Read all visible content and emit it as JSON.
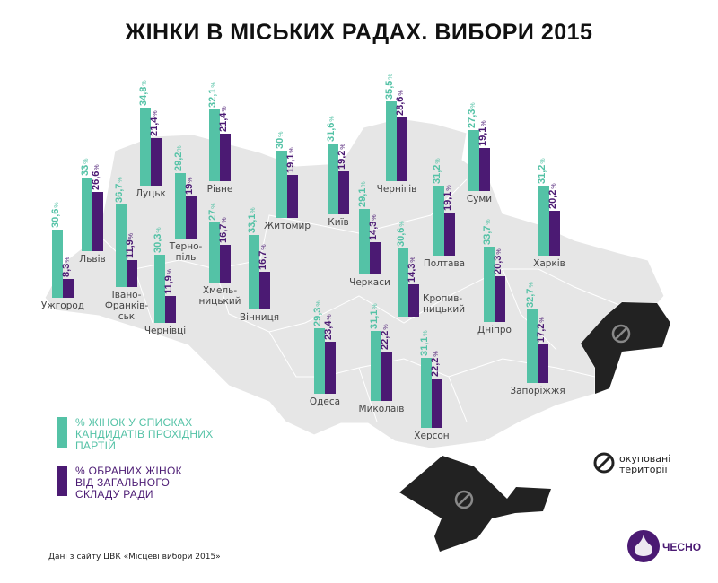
{
  "title": "ЖІНКИ В МІСЬКИХ РАДАХ. ВИБОРИ 2015",
  "colors": {
    "candidates": "#54c2a6",
    "elected": "#4b1a73",
    "map": "#e6e6e6",
    "occupied": "#222222"
  },
  "legend": {
    "candidates": "% ЖІНОК У СПИСКАХ\nКАНДИДАТІВ ПРОХІДНИХ\nПАРТІЙ",
    "elected": "% ОБРАНИХ ЖІНОК\nВІД ЗАГАЛЬНОГО\nСКЛАДУ РАДИ",
    "occupied": "окуповані\nтериторії",
    "occupied_icon": "prohibited-icon"
  },
  "source": "Дані з сайту ЦВК «Місцеві вибори 2015»",
  "logo": "ЧЕСНО",
  "unit": "%",
  "chart_data": {
    "type": "bar",
    "title": "ЖІНКИ В МІСЬКИХ РАДАХ. ВИБОРИ 2015",
    "series": [
      {
        "name": "% ЖІНОК У СПИСКАХ КАНДИДАТІВ ПРОХІДНИХ ПАРТІЙ",
        "key": "candidates"
      },
      {
        "name": "% ОБРАНИХ ЖІНОК ВІД ЗАГАЛЬНОГО СКЛАДУ РАДИ",
        "key": "elected"
      }
    ],
    "cities": [
      {
        "name": "Ужгород",
        "candidates": 30.6,
        "elected": 8.3
      },
      {
        "name": "Львів",
        "candidates": 33,
        "elected": 26.6
      },
      {
        "name": "Івано-\nФранків-\nськ",
        "candidates": 36.7,
        "elected": 11.9
      },
      {
        "name": "Чернівці",
        "candidates": 30.3,
        "elected": 11.9
      },
      {
        "name": "Луцьк",
        "candidates": 34.8,
        "elected": 21.4
      },
      {
        "name": "Терно-\nпіль",
        "candidates": 29.2,
        "elected": 19
      },
      {
        "name": "Рівне",
        "candidates": 32.1,
        "elected": 21.4
      },
      {
        "name": "Хмель-\nницький",
        "candidates": 27,
        "elected": 16.7
      },
      {
        "name": "Вінниця",
        "candidates": 33.1,
        "elected": 16.7
      },
      {
        "name": "Житомир",
        "candidates": 30,
        "elected": 19.1
      },
      {
        "name": "Київ",
        "candidates": 31.6,
        "elected": 19.2
      },
      {
        "name": "Чернігів",
        "candidates": 35.5,
        "elected": 28.6
      },
      {
        "name": "Черкаси",
        "candidates": 29.1,
        "elected": 14.3
      },
      {
        "name": "Кропив-\nницький",
        "candidates": 30.6,
        "elected": 14.3
      },
      {
        "name": "Полтава",
        "candidates": 31.2,
        "elected": 19.1
      },
      {
        "name": "Суми",
        "candidates": 27.3,
        "elected": 19.1
      },
      {
        "name": "Харків",
        "candidates": 31.2,
        "elected": 20.2
      },
      {
        "name": "Дніпро",
        "candidates": 33.7,
        "elected": 20.3
      },
      {
        "name": "Запоріжжя",
        "candidates": 32.7,
        "elected": 17.2
      },
      {
        "name": "Одеса",
        "candidates": 29.3,
        "elected": 23.4
      },
      {
        "name": "Миколаїв",
        "candidates": 31.1,
        "elected": 22.2
      },
      {
        "name": "Херсон",
        "candidates": 31.1,
        "elected": 22.2
      }
    ]
  }
}
